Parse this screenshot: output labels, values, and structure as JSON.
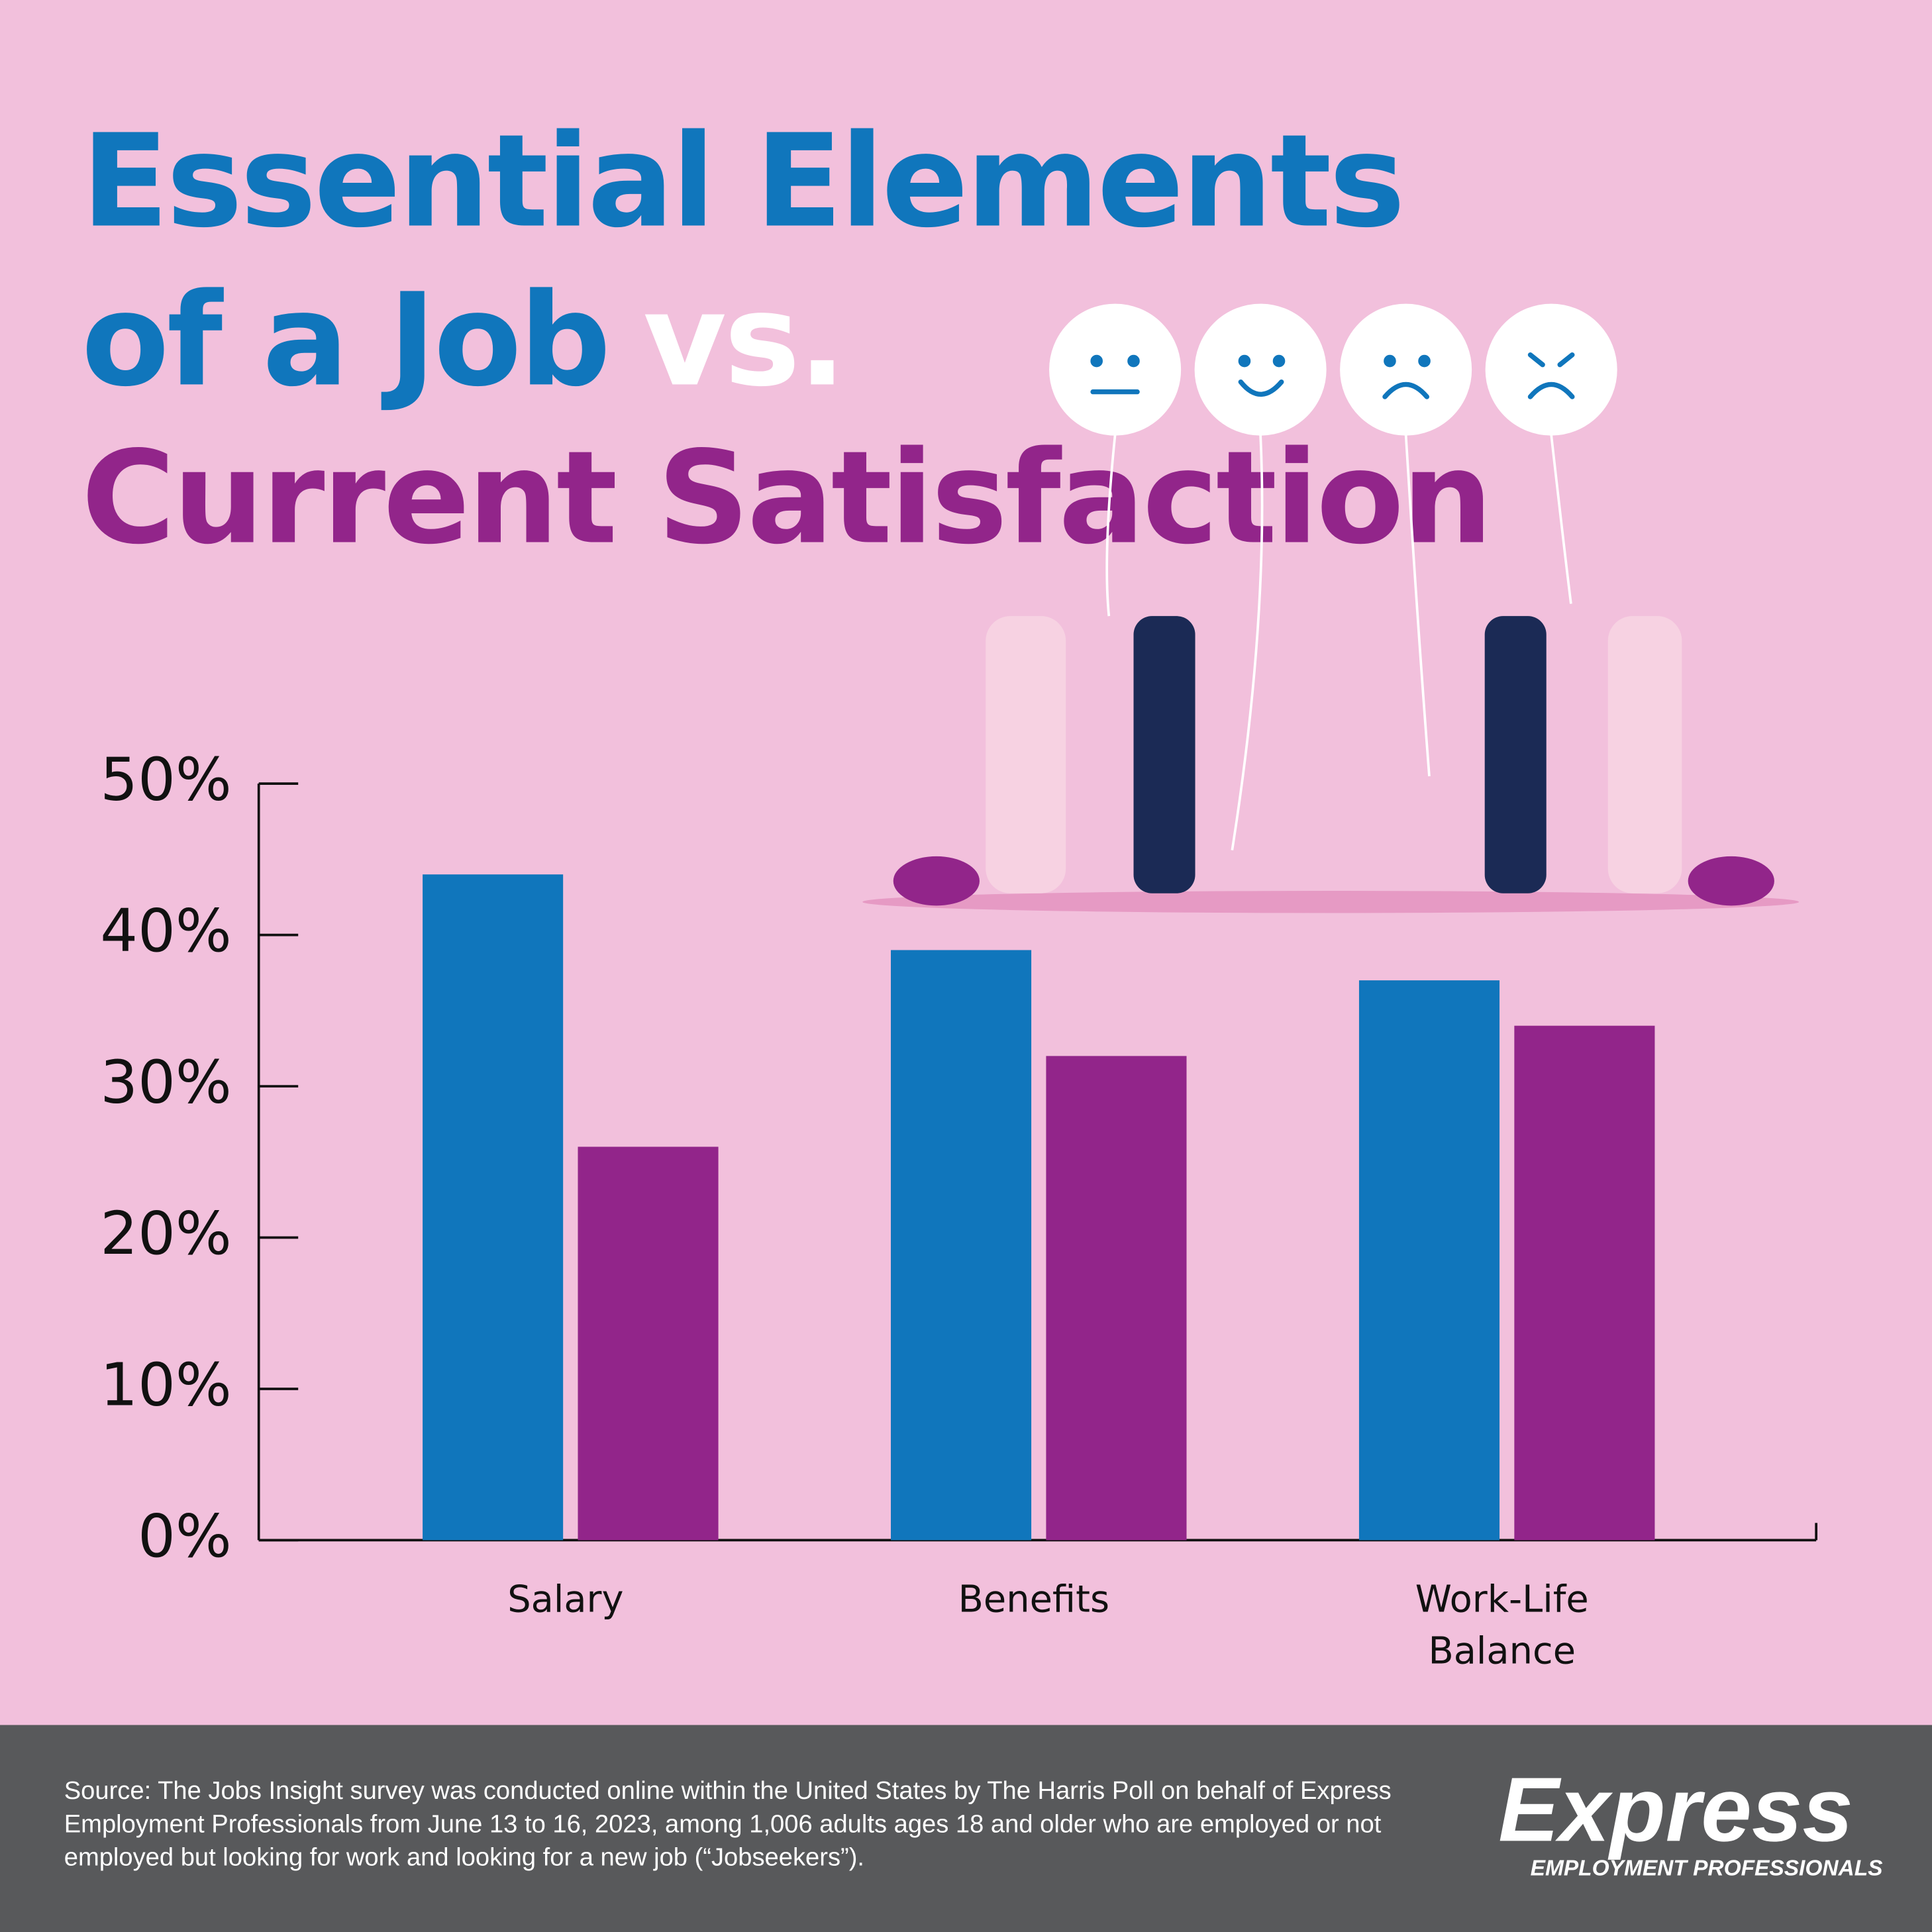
{
  "chart_data": {
    "type": "bar",
    "title": [
      "Essential Elements",
      "of a Job",
      "vs.",
      "Current Satisfaction"
    ],
    "categories": [
      "Salary",
      "Benefits",
      "Work-Life Balance"
    ],
    "series": [
      {
        "color": "#1076bc",
        "values": [
          44,
          39,
          37
        ]
      },
      {
        "color": "#92258a",
        "values": [
          26,
          32,
          34
        ]
      }
    ],
    "ylim": [
      0,
      50
    ],
    "yticks": [
      {
        "value": 0,
        "label": "0%"
      },
      {
        "value": 10,
        "label": "10%"
      },
      {
        "value": 20,
        "label": "20%"
      },
      {
        "value": 30,
        "label": "30%"
      },
      {
        "value": 40,
        "label": "40%"
      },
      {
        "value": 50,
        "label": "50%"
      }
    ],
    "source": "Source: The Jobs Insight survey was conducted online within the United States by The Harris Poll on behalf of Express Employment Professionals from June 13 to 16, 2023, among 1,006 adults ages 18 and older who are employed or not employed but looking for work and looking for a new job (“Jobseekers”).",
    "logo": {
      "name": "Express",
      "tagline": "EMPLOYMENT PROFESSIONALS"
    }
  }
}
